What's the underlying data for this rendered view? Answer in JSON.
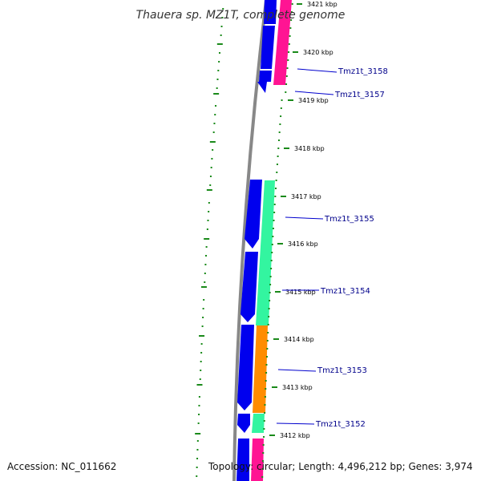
{
  "title": "Thauera sp. MZ1T, complete genome",
  "accession": "Accession: NC_011662",
  "summary": "Topology: circular; Length: 4,496,212 bp; Genes: 3,974",
  "colors": {
    "backbone": "#888888",
    "cds_blue": "#0000ee",
    "magenta": "#ff1493",
    "aquamarine": "#33f5a0",
    "orange": "#ff8c00",
    "tick_green": "#1a8a1a",
    "label_line": "#0000cd",
    "label_text": "#00008b"
  },
  "kbp_ticks": [
    {
      "label": "3421 kbp"
    },
    {
      "label": "3420 kbp"
    },
    {
      "label": "3419 kbp"
    },
    {
      "label": "3418 kbp"
    },
    {
      "label": "3417 kbp"
    },
    {
      "label": "3416 kbp"
    },
    {
      "label": "3415 kbp"
    },
    {
      "label": "3414 kbp"
    },
    {
      "label": "3413 kbp"
    },
    {
      "label": "3412 kbp"
    }
  ],
  "gene_labels": [
    {
      "name": "Tmz1t_3158"
    },
    {
      "name": "Tmz1t_3157"
    },
    {
      "name": "Tmz1t_3155"
    },
    {
      "name": "Tmz1t_3154"
    },
    {
      "name": "Tmz1t_3153"
    },
    {
      "name": "Tmz1t_3152"
    }
  ]
}
